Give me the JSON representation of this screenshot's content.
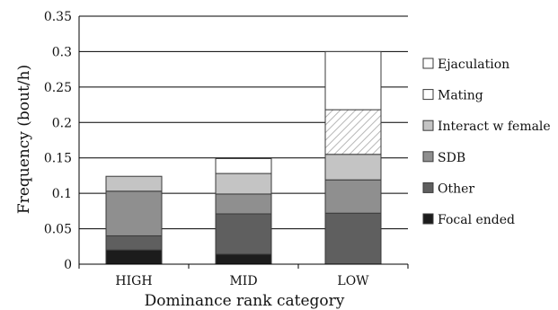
{
  "chart_data": {
    "type": "bar",
    "stacked": true,
    "categories": [
      "HIGH",
      "MID",
      "LOW"
    ],
    "series": [
      {
        "name": "Focal ended",
        "values": [
          0.02,
          0.014,
          0.0
        ],
        "color": "#1c1c1c",
        "pattern": "solid"
      },
      {
        "name": "Other",
        "values": [
          0.02,
          0.057,
          0.072
        ],
        "color": "#5f5f5f",
        "pattern": "solid"
      },
      {
        "name": "SDB",
        "values": [
          0.063,
          0.028,
          0.047
        ],
        "color": "#8f8f8f",
        "pattern": "solid"
      },
      {
        "name": "Interact w female",
        "values": [
          0.021,
          0.029,
          0.036
        ],
        "color": "#c4c4c4",
        "pattern": "solid"
      },
      {
        "name": "Mating",
        "values": [
          0.0,
          0.0,
          0.063
        ],
        "color": "#ffffff",
        "pattern": "hatched"
      },
      {
        "name": "Ejaculation",
        "values": [
          0.0,
          0.021,
          0.082
        ],
        "color": "#ffffff",
        "pattern": "solid"
      }
    ],
    "ylim": [
      0,
      0.35
    ],
    "yticks": [
      "0",
      "0.05",
      "0.1",
      "0.15",
      "0.2",
      "0.25",
      "0.3",
      "0.35"
    ],
    "xlabel": "Dominance rank category",
    "ylabel": "Frequency (bout/h)",
    "grid": true,
    "legend_position": "right",
    "legend_order": [
      "Ejaculation",
      "Mating",
      "Interact w female",
      "SDB",
      "Other",
      "Focal ended"
    ]
  }
}
